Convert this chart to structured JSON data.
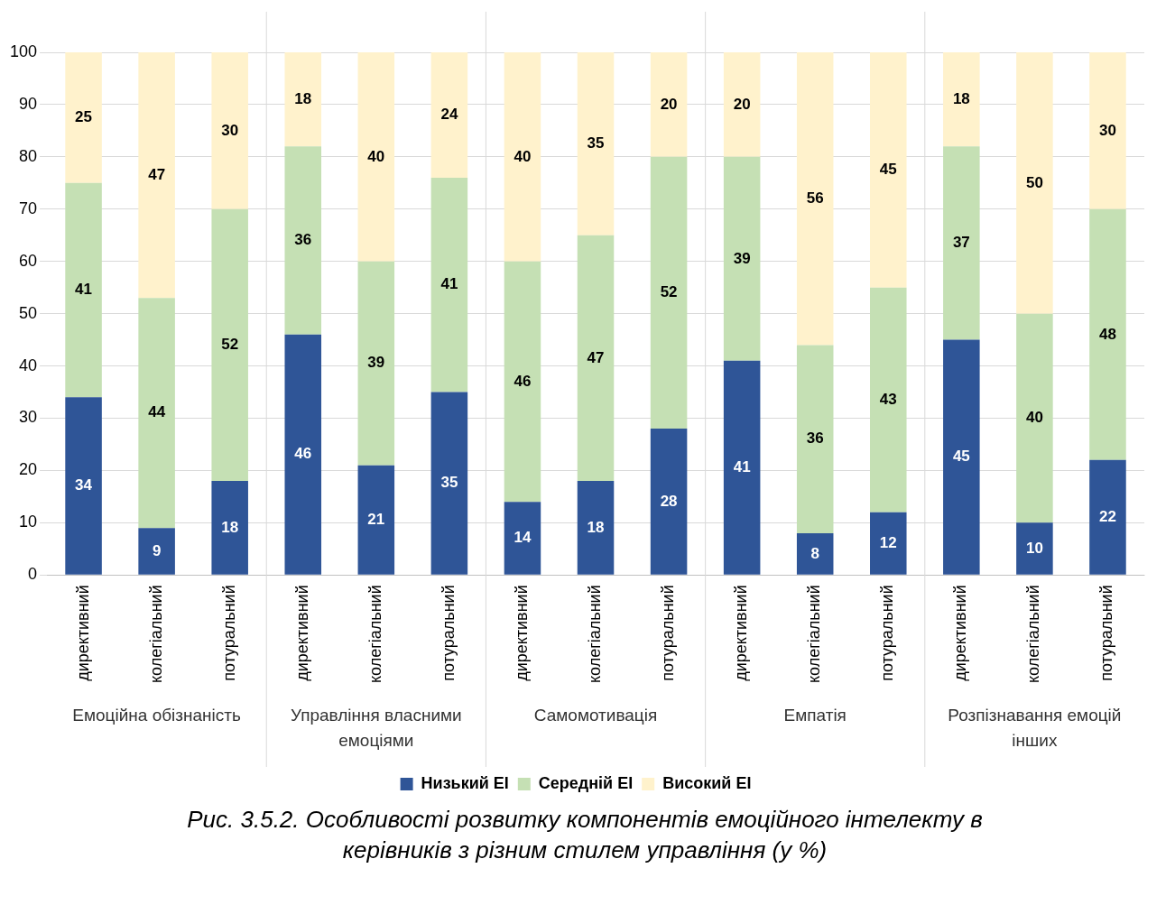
{
  "chart_data": {
    "type": "bar",
    "title": "Рис. 3.5.2. Особливості розвитку компонентів емоційного інтелекту в керівників з різним стилем управління (у %)",
    "categories": [
      "директивний",
      "колегіальний",
      "потуральний",
      "директивний",
      "колегіальний",
      "потуральний",
      "директивний",
      "колегіальний",
      "потуральний",
      "директивний",
      "колегіальний",
      "потуральний",
      "директивний",
      "колегіальний",
      "потуральний"
    ],
    "annotations": [
      "Емоційна обізнаність",
      "Управління власними емоціями",
      "Самомотивація",
      "Емпатія",
      "Розпізнавання емоцій інших"
    ],
    "series": [
      {
        "name": "Низький ЕІ",
        "color": "#2f5597",
        "values": [
          34,
          9,
          18,
          46,
          21,
          35,
          14,
          18,
          28,
          41,
          8,
          12,
          45,
          10,
          22
        ]
      },
      {
        "name": "Середній ЕІ",
        "color": "#c5e0b4",
        "values": [
          41,
          44,
          52,
          36,
          39,
          41,
          46,
          47,
          52,
          39,
          36,
          43,
          37,
          40,
          48
        ]
      },
      {
        "name": "Високий ЕІ",
        "color": "#fff2cc",
        "values": [
          25,
          47,
          30,
          18,
          40,
          24,
          40,
          35,
          20,
          20,
          56,
          45,
          18,
          50,
          30
        ]
      }
    ],
    "stacked": true,
    "ylim": [
      0,
      100
    ],
    "yticks": [
      0,
      10,
      20,
      30,
      40,
      50,
      60,
      70,
      80,
      90,
      100
    ],
    "grid": "y",
    "legend": "bottom",
    "data_labels": true
  }
}
